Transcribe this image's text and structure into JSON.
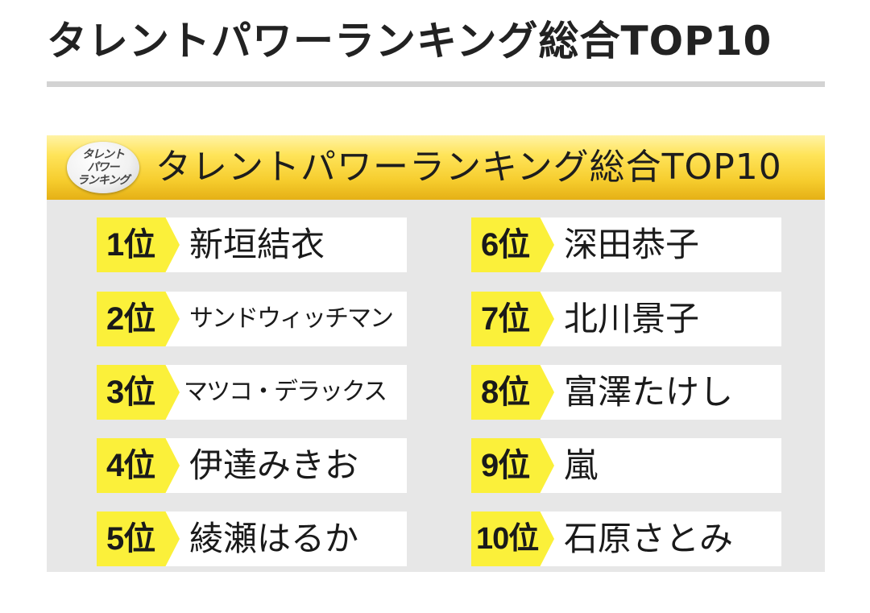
{
  "page": {
    "title": "タレントパワーランキング総合TOP10"
  },
  "banner": {
    "logo_lines": [
      "タレント",
      "パワー",
      "ランキング"
    ],
    "title": "タレントパワーランキング総合TOP10"
  },
  "colors": {
    "banner_gold": "#f6cd2e",
    "rank_tag_yellow": "#fbf03a",
    "panel_gray": "#e7e7e7",
    "rule_gray": "#d3d3d3"
  },
  "ranking": [
    {
      "rank": "1位",
      "name": "新垣結衣"
    },
    {
      "rank": "2位",
      "name": "サンドウィッチマン"
    },
    {
      "rank": "3位",
      "name": "マツコ・デラックス"
    },
    {
      "rank": "4位",
      "name": "伊達みきお"
    },
    {
      "rank": "5位",
      "name": "綾瀬はるか"
    },
    {
      "rank": "6位",
      "name": "深田恭子"
    },
    {
      "rank": "7位",
      "name": "北川景子"
    },
    {
      "rank": "8位",
      "name": "富澤たけし"
    },
    {
      "rank": "9位",
      "name": "嵐"
    },
    {
      "rank": "10位",
      "name": "石原さとみ"
    }
  ]
}
